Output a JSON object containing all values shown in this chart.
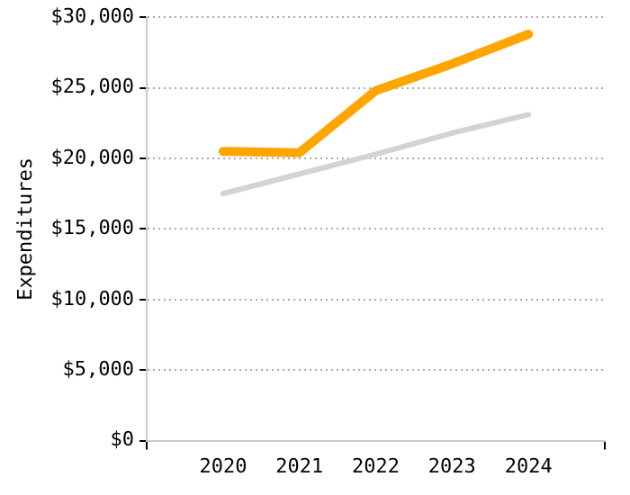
{
  "chart_data": {
    "type": "line",
    "ylabel": "Expenditures",
    "x": [
      2020,
      2021,
      2022,
      2023,
      2024
    ],
    "series": [
      {
        "color": "#ffa500",
        "values": [
          20500,
          20400,
          24800,
          26700,
          28800
        ]
      },
      {
        "color": "#d3d3d3",
        "values": [
          17500,
          18900,
          20300,
          21800,
          23100
        ]
      }
    ],
    "xlim": [
      2019,
      2025
    ],
    "xticks": [
      {
        "value": 2019,
        "label": null
      },
      2020,
      2021,
      2022,
      2023,
      2024,
      {
        "value": 2025,
        "label": null
      }
    ],
    "ylim": [
      0,
      30000
    ],
    "yticks": [
      {
        "value": 0,
        "label": "$0"
      },
      {
        "value": 5000,
        "label": "$5,000"
      },
      {
        "value": 10000,
        "label": "$10,000"
      },
      {
        "value": 15000,
        "label": "$15,000"
      },
      {
        "value": 20000,
        "label": "$20,000"
      },
      {
        "value": 25000,
        "label": "$25,000"
      },
      {
        "value": 30000,
        "label": "$30,000"
      }
    ],
    "grid": "y",
    "legend": false,
    "marker": "none",
    "line_style": "solid"
  }
}
